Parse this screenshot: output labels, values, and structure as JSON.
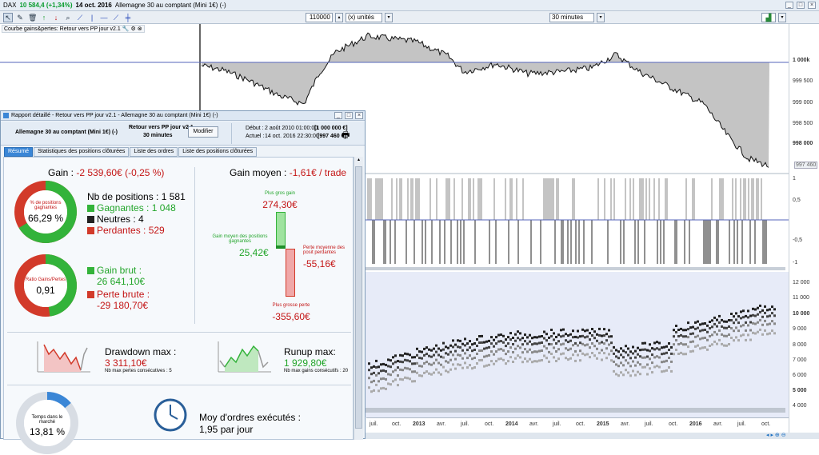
{
  "titlebar": {
    "symbol": "DAX",
    "change": "10 584,4 (+1,34%)",
    "date": "14 oct. 2016",
    "instrument": "Allemagne 30 au comptant (Mini 1€) (-)"
  },
  "toolbar": {
    "quantity": "110000",
    "unit": "(x) unités",
    "period": "30 minutes"
  },
  "chart_label": "Courbe gains&pertes: Retour vers PP jour v2.1",
  "axis_right": {
    "equity": [
      "1 000k",
      "999 500",
      "999 000",
      "998 500",
      "998 000"
    ],
    "equity_current": "997 460",
    "position": [
      "1",
      "0,5",
      "-0,5",
      "-1"
    ],
    "price": [
      "12 000",
      "11 000",
      "10 000",
      "9 000",
      "8 000",
      "7 000",
      "6 000",
      "5 000",
      "4 000"
    ]
  },
  "axis_bottom": [
    "juil.",
    "oct.",
    "2013",
    "avr.",
    "juil.",
    "oct.",
    "2014",
    "avr.",
    "juil.",
    "oct.",
    "2015",
    "avr.",
    "juil.",
    "oct.",
    "2016",
    "avr.",
    "juil.",
    "oct."
  ],
  "panel": {
    "title": "Rapport détaillé - Retour vers PP jour v2.1 - Allemagne 30 au comptant (Mini 1€) (-)",
    "instrument": "Allemagne 30 au comptant (Mini 1€) (-)",
    "system": "Retour vers PP jour v2.1",
    "period": "30 minutes",
    "modify_button": "Modifier",
    "start_label": "Début :",
    "start_value": "2 août 2010 01:00:00",
    "start_capital": "[1 000 000 €]",
    "now_label": "Actuel :",
    "now_value": "14 oct. 2016 22:30:00",
    "now_capital": "[997 460 €]",
    "tabs": [
      "Résumé",
      "Statistiques des positions clôturées",
      "Liste des ordres",
      "Liste des positions clôturées"
    ],
    "gain_label": "Gain :",
    "gain_value": "-2 539,60€ (-0,25 %)",
    "donut1_label": "% de positions gagnantes",
    "donut1_value": "66,29 %",
    "nb_positions": "Nb de positions : 1 581",
    "gagnantes": "Gagnantes : 1 048",
    "neutres": "Neutres : 4",
    "perdantes": "Perdantes : 529",
    "donut2_label": "Ratio Gains/Pertes",
    "donut2_value": "0,91",
    "gain_brut_label": "Gain brut :",
    "gain_brut_value": "26 641,10€",
    "perte_brute_label": "Perte brute :",
    "perte_brute_value": "-29 180,70€",
    "gain_moyen_label": "Gain moyen :",
    "gain_moyen_value": "-1,61€ / trade",
    "plus_gros_gain_label": "Plus gros gain",
    "plus_gros_gain": "274,30€",
    "gain_moyen_pos_label": "Gain moyen des positions gagnantes",
    "gain_moyen_pos": "25,42€",
    "perte_moyenne_label": "Perte moyenne des posit perdantes",
    "perte_moyenne": "-55,16€",
    "plus_grosse_perte_label": "Plus grosse perte",
    "plus_grosse_perte": "-355,60€",
    "drawdown_label": "Drawdown max :",
    "drawdown_value": "3 311,10€",
    "drawdown_sub": "Nb max pertes consécutives : 5",
    "runup_label": "Runup max:",
    "runup_value": "1 929,80€",
    "runup_sub": "Nb max gains consécutifs : 20",
    "temps_label": "Temps dans le marché",
    "temps_value": "13,81 %",
    "moy_ordres_label": "Moy d'ordres exécutés :",
    "moy_ordres_value": "1,95 par jour"
  },
  "colors": {
    "win_green": "#33b33a",
    "loss_red": "#d23a2a",
    "equity_fill": "#c4c4c4",
    "zero_line": "#5566bb",
    "price_bg": "#e7ebf8"
  }
}
